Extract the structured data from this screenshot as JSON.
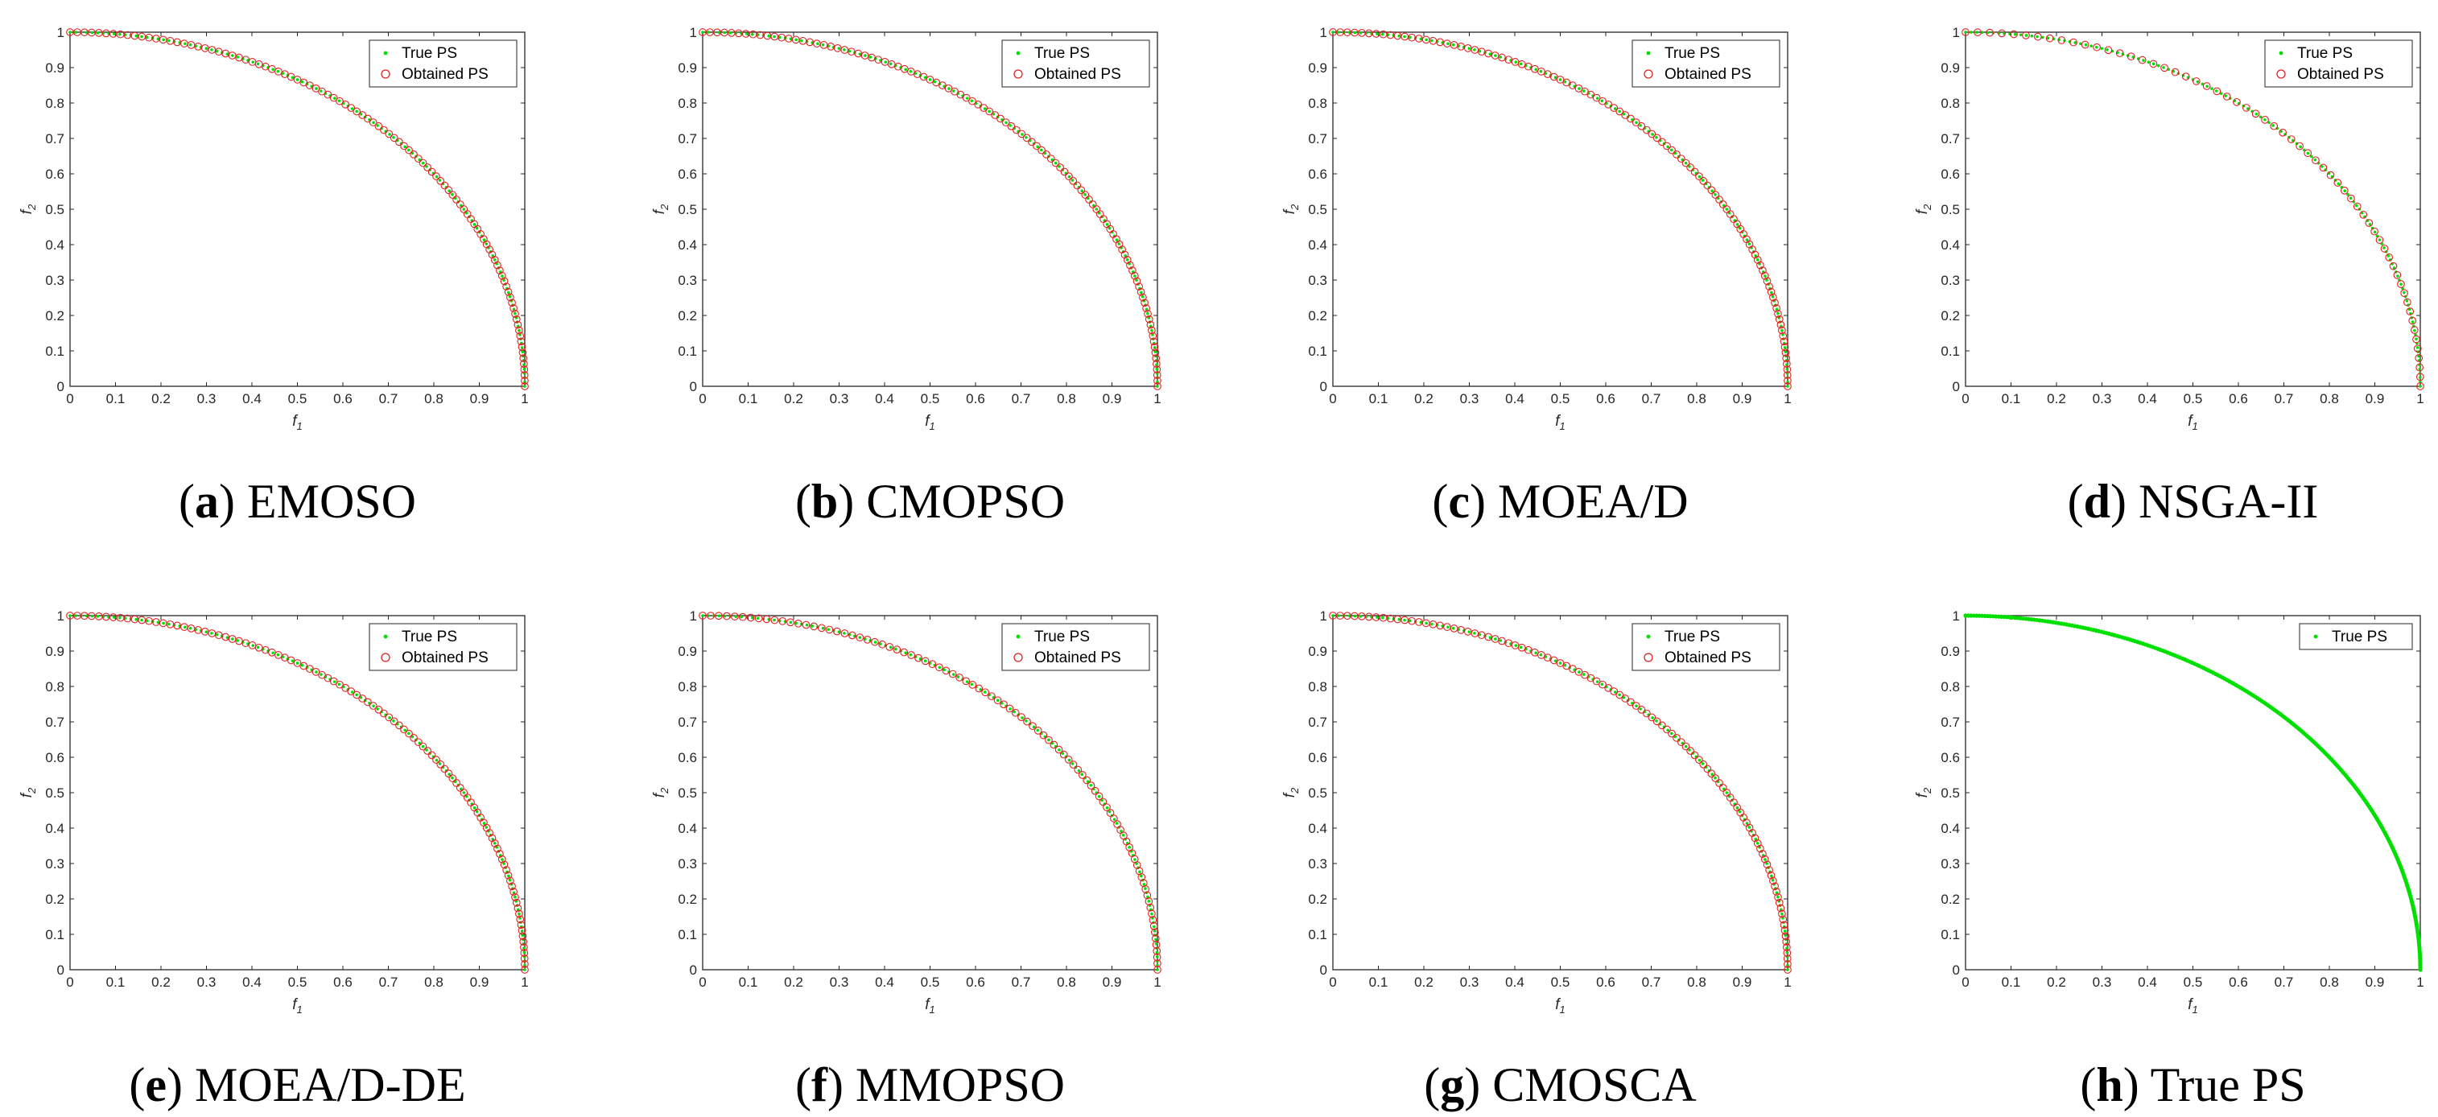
{
  "figure": {
    "rows": 2,
    "cols": 4,
    "x_tick_labels": [
      "0",
      "0.1",
      "0.2",
      "0.3",
      "0.4",
      "0.5",
      "0.6",
      "0.7",
      "0.8",
      "0.9",
      "1"
    ],
    "y_tick_labels": [
      "0",
      "0.1",
      "0.2",
      "0.3",
      "0.4",
      "0.5",
      "0.6",
      "0.7",
      "0.8",
      "0.9",
      "1"
    ]
  },
  "colors": {
    "true_ps": "#00e000",
    "obtained_ps": "#e02020",
    "axis": "#262626"
  },
  "chart_data": [
    {
      "type": "scatter",
      "caption_letter": "a",
      "caption_label": "EMOSO",
      "xlabel": "f",
      "xlabel_sub": "1",
      "ylabel": "f",
      "ylabel_sub": "2",
      "xlim": [
        0,
        1
      ],
      "ylim": [
        0,
        1
      ],
      "legend_position": "top-right",
      "series": [
        {
          "name": "True PS",
          "marker": "point",
          "curve": "x^2 + y^2 = 1",
          "x_range": [
            0,
            1
          ]
        },
        {
          "name": "Obtained PS",
          "marker": "circle",
          "count": 100,
          "x_range": [
            0,
            1
          ]
        }
      ]
    },
    {
      "type": "scatter",
      "caption_letter": "b",
      "caption_label": "CMOPSO",
      "xlabel": "f",
      "xlabel_sub": "1",
      "ylabel": "f",
      "ylabel_sub": "2",
      "xlim": [
        0,
        1
      ],
      "ylim": [
        0,
        1
      ],
      "legend_position": "top-right",
      "series": [
        {
          "name": "True PS",
          "marker": "point",
          "curve": "x^2 + y^2 = 1",
          "x_range": [
            0,
            1
          ]
        },
        {
          "name": "Obtained PS",
          "marker": "circle",
          "count": 100,
          "x_range": [
            0,
            1
          ]
        }
      ]
    },
    {
      "type": "scatter",
      "caption_letter": "c",
      "caption_label": "MOEA/D",
      "xlabel": "f",
      "xlabel_sub": "1",
      "ylabel": "f",
      "ylabel_sub": "2",
      "xlim": [
        0,
        1
      ],
      "ylim": [
        0,
        1
      ],
      "legend_position": "top-right",
      "series": [
        {
          "name": "True PS",
          "marker": "point",
          "curve": "x^2 + y^2 = 1",
          "x_range": [
            0,
            1
          ]
        },
        {
          "name": "Obtained PS",
          "marker": "circle",
          "count": 100,
          "x_range": [
            0,
            1
          ]
        }
      ]
    },
    {
      "type": "scatter",
      "caption_letter": "d",
      "caption_label": "NSGA-II",
      "xlabel": "f",
      "xlabel_sub": "1",
      "ylabel": "f",
      "ylabel_sub": "2",
      "xlim": [
        0,
        1
      ],
      "ylim": [
        0,
        1
      ],
      "legend_position": "top-right",
      "series": [
        {
          "name": "True PS",
          "marker": "point",
          "curve": "x^2 + y^2 = 1",
          "x_range": [
            0,
            1
          ]
        },
        {
          "name": "Obtained PS",
          "marker": "circle",
          "count": 60,
          "x_range": [
            0,
            1
          ]
        }
      ]
    },
    {
      "type": "scatter",
      "caption_letter": "e",
      "caption_label": "MOEA/D-DE",
      "xlabel": "f",
      "xlabel_sub": "1",
      "ylabel": "f",
      "ylabel_sub": "2",
      "xlim": [
        0,
        1
      ],
      "ylim": [
        0,
        1
      ],
      "legend_position": "top-right",
      "series": [
        {
          "name": "True PS",
          "marker": "point",
          "curve": "x^2 + y^2 = 1",
          "x_range": [
            0,
            1
          ]
        },
        {
          "name": "Obtained PS",
          "marker": "circle",
          "count": 100,
          "x_range": [
            0,
            1
          ]
        }
      ]
    },
    {
      "type": "scatter",
      "caption_letter": "f",
      "caption_label": "MMOPSO",
      "xlabel": "f",
      "xlabel_sub": "1",
      "ylabel": "f",
      "ylabel_sub": "2",
      "xlim": [
        0,
        1
      ],
      "ylim": [
        0,
        1
      ],
      "legend_position": "top-right",
      "series": [
        {
          "name": "True PS",
          "marker": "point",
          "curve": "x^2 + y^2 = 1",
          "x_range": [
            0,
            1
          ]
        },
        {
          "name": "Obtained PS",
          "marker": "circle",
          "count": 90,
          "x_range": [
            0,
            1
          ]
        }
      ]
    },
    {
      "type": "scatter",
      "caption_letter": "g",
      "caption_label": "CMOSCA",
      "xlabel": "f",
      "xlabel_sub": "1",
      "ylabel": "f",
      "ylabel_sub": "2",
      "xlim": [
        0,
        1
      ],
      "ylim": [
        0,
        1
      ],
      "legend_position": "top-right",
      "series": [
        {
          "name": "True PS",
          "marker": "point",
          "curve": "x^2 + y^2 = 1",
          "x_range": [
            0,
            1
          ]
        },
        {
          "name": "Obtained PS",
          "marker": "circle",
          "count": 100,
          "x_range": [
            0,
            1
          ]
        }
      ]
    },
    {
      "type": "scatter",
      "caption_letter": "h",
      "caption_label": "True PS",
      "xlabel": "f",
      "xlabel_sub": "1",
      "ylabel": "f",
      "ylabel_sub": "2",
      "xlim": [
        0,
        1
      ],
      "ylim": [
        0,
        1
      ],
      "legend_position": "top-right",
      "series": [
        {
          "name": "True PS",
          "marker": "point",
          "curve": "x^2 + y^2 = 1",
          "x_range": [
            0,
            1
          ]
        }
      ]
    }
  ]
}
